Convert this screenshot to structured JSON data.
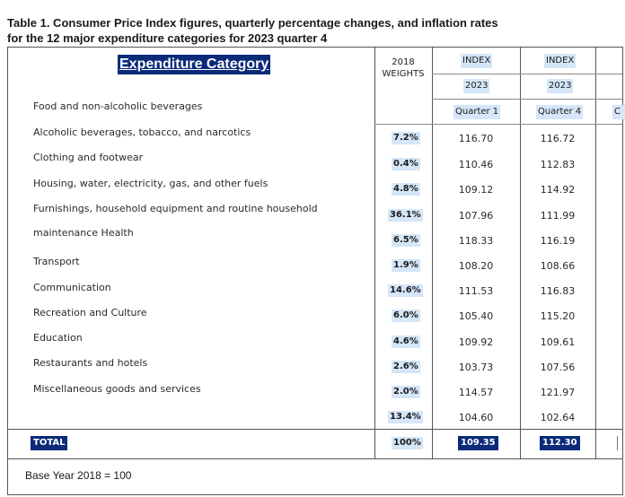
{
  "title": {
    "line1": "Table 1. Consumer Price Index figures, quarterly percentage changes, and inflation rates",
    "line2": "for the 12 major expenditure categories for 2023 quarter 4"
  },
  "header": {
    "category": "Expenditure Category",
    "weights": "2018 WEIGHTS",
    "index_label": "INDEX",
    "year": "2023",
    "q1": "Quarter 1",
    "q4": "Quarter 4",
    "cut_column": "C"
  },
  "categories": [
    "Food and non-alcoholic beverages",
    "Alcoholic beverages, tobacco, and narcotics",
    "Clothing and footwear",
    "Housing, water, electricity, gas, and other fuels",
    "Furnishings, household equipment and routine household",
    "maintenance Health",
    "Transport",
    "Communication",
    "Recreation and Culture",
    "Education",
    "Restaurants and hotels",
    "Miscellaneous goods and services"
  ],
  "rows": [
    {
      "weight": "7.2%",
      "q1": "116.70",
      "q4": "116.72"
    },
    {
      "weight": "0.4%",
      "q1": "110.46",
      "q4": "112.83"
    },
    {
      "weight": "4.8%",
      "q1": "109.12",
      "q4": "114.92"
    },
    {
      "weight": "36.1%",
      "q1": "107.96",
      "q4": "111.99"
    },
    {
      "weight": "6.5%",
      "q1": "118.33",
      "q4": "116.19"
    },
    {
      "weight": "1.9%",
      "q1": "108.20",
      "q4": "108.66"
    },
    {
      "weight": "14.6%",
      "q1": "111.53",
      "q4": "116.83"
    },
    {
      "weight": "6.0%",
      "q1": "105.40",
      "q4": "115.20"
    },
    {
      "weight": "4.6%",
      "q1": "109.92",
      "q4": "109.61"
    },
    {
      "weight": "2.6%",
      "q1": "103.73",
      "q4": "107.56"
    },
    {
      "weight": "2.0%",
      "q1": "114.57",
      "q4": "121.97"
    },
    {
      "weight": "13.4%",
      "q1": "104.60",
      "q4": "102.64"
    }
  ],
  "total": {
    "label": "TOTAL",
    "weight": "100%",
    "q1": "109.35",
    "q4": "112.30"
  },
  "footer": "Base Year 2018 = 100"
}
